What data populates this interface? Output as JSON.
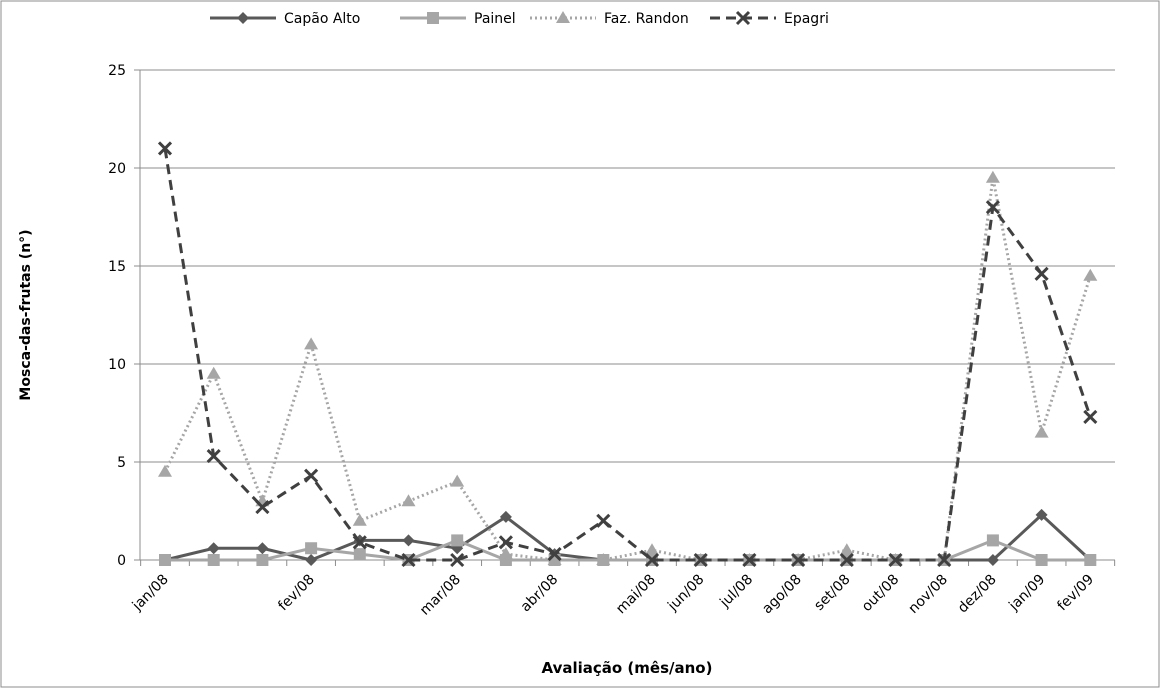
{
  "chart_data": {
    "type": "line",
    "x_label": "Avaliação (mês/ano)",
    "y_label": "Mosca-das-frutas  (n°)",
    "categories": [
      "jan/08",
      null,
      null,
      "fev/08",
      null,
      null,
      "mar/08",
      null,
      "abr/08",
      null,
      "mai/08",
      "jun/08",
      "jul/08",
      "ago/08",
      "set/08",
      "out/08",
      "nov/08",
      "dez/08",
      "jan/09",
      "fev/09"
    ],
    "series": [
      {
        "name": "Capão Alto",
        "color": "#595959",
        "marker": "diamond",
        "dash": "solid",
        "values": [
          0,
          0.6,
          0.6,
          0,
          1,
          1,
          0.6,
          2.2,
          0.3,
          0,
          0,
          0,
          0,
          0,
          0,
          0,
          0,
          0,
          2.3,
          0
        ]
      },
      {
        "name": "Painel",
        "color": "#a6a6a6",
        "marker": "square",
        "dash": "solid",
        "values": [
          0,
          0,
          0,
          0.6,
          0.3,
          0,
          1,
          0,
          0,
          0,
          0,
          0,
          0,
          0,
          0,
          0,
          0,
          1,
          0,
          0
        ]
      },
      {
        "name": "Faz. Randon",
        "color": "#a6a6a6",
        "marker": "triangle",
        "dash": "dotted",
        "values": [
          4.5,
          9.5,
          3,
          11,
          2,
          3,
          4,
          0.3,
          0,
          0,
          0.5,
          0,
          0,
          0,
          0.5,
          0,
          0,
          19.5,
          6.5,
          14.5
        ]
      },
      {
        "name": "Epagri",
        "color": "#404040",
        "marker": "x",
        "dash": "dashed",
        "values": [
          21,
          5.3,
          2.7,
          4.3,
          0.9,
          0,
          0,
          0.9,
          0.3,
          2,
          0,
          0,
          0,
          0,
          0,
          0,
          0,
          18,
          14.6,
          7.3
        ]
      }
    ],
    "ylim": [
      0,
      25
    ],
    "yticks": [
      0,
      5,
      10,
      15,
      20,
      25
    ],
    "grid": true,
    "legend": "top"
  }
}
